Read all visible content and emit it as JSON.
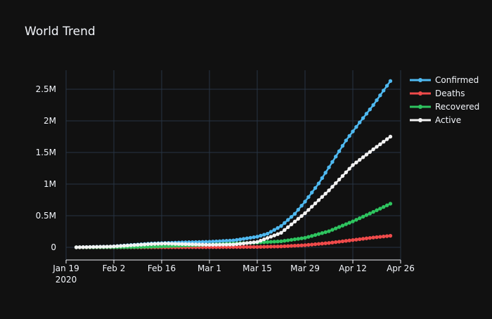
{
  "chart_data": {
    "type": "line",
    "title": "World Trend",
    "xlabel": "",
    "ylabel": "",
    "x_start": "2020-01-22",
    "x_end": "2020-04-23",
    "xlim": [
      "2020-01-19",
      "2020-04-26"
    ],
    "ylim": [
      -200000,
      2800000
    ],
    "x_ticks": [
      {
        "label": "Jan 19",
        "sublabel": "2020",
        "date": "2020-01-19"
      },
      {
        "label": "Feb 2",
        "sublabel": "",
        "date": "2020-02-02"
      },
      {
        "label": "Feb 16",
        "sublabel": "",
        "date": "2020-02-16"
      },
      {
        "label": "Mar 1",
        "sublabel": "",
        "date": "2020-03-01"
      },
      {
        "label": "Mar 15",
        "sublabel": "",
        "date": "2020-03-15"
      },
      {
        "label": "Mar 29",
        "sublabel": "",
        "date": "2020-03-29"
      },
      {
        "label": "Apr 12",
        "sublabel": "",
        "date": "2020-04-12"
      },
      {
        "label": "Apr 26",
        "sublabel": "",
        "date": "2020-04-26"
      }
    ],
    "y_ticks": [
      {
        "label": "0",
        "value": 0
      },
      {
        "label": "0.5M",
        "value": 500000
      },
      {
        "label": "1M",
        "value": 1000000
      },
      {
        "label": "1.5M",
        "value": 1500000
      },
      {
        "label": "2M",
        "value": 2000000
      },
      {
        "label": "2.5M",
        "value": 2500000
      }
    ],
    "grid": true,
    "legend_position": "top-right",
    "series": [
      {
        "name": "Confirmed",
        "color": "#4fb9f0",
        "anchors": [
          [
            "2020-01-22",
            555
          ],
          [
            "2020-02-01",
            12000
          ],
          [
            "2020-02-13",
            60000
          ],
          [
            "2020-02-22",
            78000
          ],
          [
            "2020-03-01",
            88000
          ],
          [
            "2020-03-08",
            109000
          ],
          [
            "2020-03-15",
            168000
          ],
          [
            "2020-03-18",
            215000
          ],
          [
            "2020-03-22",
            337000
          ],
          [
            "2020-03-26",
            530000
          ],
          [
            "2020-03-29",
            723000
          ],
          [
            "2020-04-02",
            1010000
          ],
          [
            "2020-04-06",
            1350000
          ],
          [
            "2020-04-10",
            1690000
          ],
          [
            "2020-04-14",
            1975000
          ],
          [
            "2020-04-18",
            2250000
          ],
          [
            "2020-04-21",
            2480000
          ],
          [
            "2020-04-23",
            2630000
          ]
        ]
      },
      {
        "name": "Deaths",
        "color": "#ef4a4a",
        "anchors": [
          [
            "2020-01-22",
            17
          ],
          [
            "2020-02-08",
            810
          ],
          [
            "2020-02-22",
            2460
          ],
          [
            "2020-03-01",
            3000
          ],
          [
            "2020-03-15",
            6500
          ],
          [
            "2020-03-22",
            14600
          ],
          [
            "2020-03-29",
            34000
          ],
          [
            "2020-04-05",
            69000
          ],
          [
            "2020-04-12",
            115000
          ],
          [
            "2020-04-18",
            155000
          ],
          [
            "2020-04-23",
            183000
          ]
        ]
      },
      {
        "name": "Recovered",
        "color": "#2ec45f",
        "anchors": [
          [
            "2020-01-22",
            28
          ],
          [
            "2020-02-08",
            3000
          ],
          [
            "2020-02-16",
            15000
          ],
          [
            "2020-03-01",
            42000
          ],
          [
            "2020-03-08",
            60000
          ],
          [
            "2020-03-15",
            76000
          ],
          [
            "2020-03-22",
            95000
          ],
          [
            "2020-03-29",
            150000
          ],
          [
            "2020-04-05",
            255000
          ],
          [
            "2020-04-12",
            410000
          ],
          [
            "2020-04-18",
            560000
          ],
          [
            "2020-04-23",
            690000
          ]
        ]
      },
      {
        "name": "Active",
        "color": "#f2f2f2",
        "anchors": [
          [
            "2020-01-22",
            510
          ],
          [
            "2020-02-01",
            11500
          ],
          [
            "2020-02-13",
            52000
          ],
          [
            "2020-02-17",
            60000
          ],
          [
            "2020-02-22",
            52000
          ],
          [
            "2020-03-01",
            40000
          ],
          [
            "2020-03-08",
            45000
          ],
          [
            "2020-03-15",
            85000
          ],
          [
            "2020-03-22",
            230000
          ],
          [
            "2020-03-29",
            540000
          ],
          [
            "2020-04-05",
            900000
          ],
          [
            "2020-04-12",
            1300000
          ],
          [
            "2020-04-18",
            1550000
          ],
          [
            "2020-04-23",
            1750000
          ]
        ]
      }
    ]
  }
}
